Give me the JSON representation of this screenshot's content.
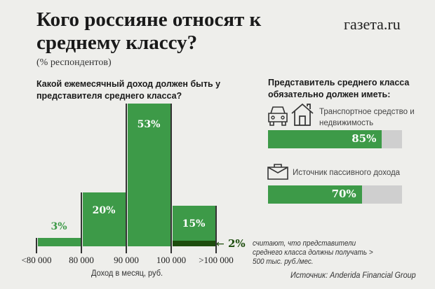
{
  "header": {
    "title": "Кого россияне относят к среднему классу?",
    "brand": "газета.ru",
    "subtitle": "(% респондентов)"
  },
  "chart_data": {
    "type": "bar",
    "title": "Какой ежемесячный доход должен быть у представителя среднего класса?",
    "categories": [
      "<80 000",
      "80 000–90 000",
      "90 000–100 000",
      ">100 000"
    ],
    "tick_labels": [
      "<80 000",
      "80 000",
      "90 000",
      "100 000",
      ">100 000"
    ],
    "values": [
      3,
      20,
      53,
      15
    ],
    "value_labels": [
      "3%",
      "20%",
      "53%",
      "15%"
    ],
    "xlabel": "Доход в месяц, руб.",
    "ylabel": "",
    "ylim": [
      0,
      53
    ],
    "sub_value": 2,
    "annotation": {
      "label": "2%",
      "arrow": "←",
      "text": "считают, что представители среднего класса должны получать > 500 тыс. руб./мес."
    },
    "colors": {
      "bar": "#3d9a48",
      "sub": "#1e4d0e"
    }
  },
  "right": {
    "title": "Представитель среднего класса обязательно должен иметь:",
    "items": [
      {
        "label": "Транспортное средство и недвижимость",
        "value": 85,
        "value_label": "85%",
        "icons": [
          "car-icon",
          "house-icon"
        ]
      },
      {
        "label": "Источник пассивного дохода",
        "value": 70,
        "value_label": "70%",
        "icons": [
          "briefcase-icon"
        ]
      }
    ]
  },
  "source": "Источник: Anderida Financial Group"
}
